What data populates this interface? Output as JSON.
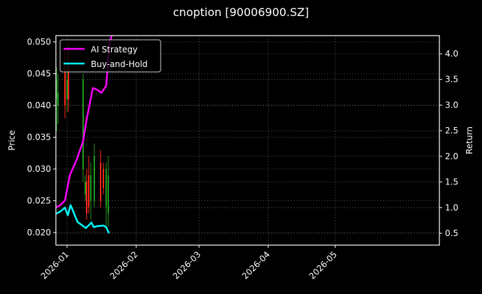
{
  "chart_data": {
    "type": "line",
    "title": "cnoption [90006900.SZ]",
    "xlabel": "",
    "ylabel": "Price",
    "ylabel_right": "Return",
    "ylim": [
      0.018,
      0.0508
    ],
    "ylim_right": [
      0.3,
      4.35
    ],
    "xlim": [
      "2025-12-27",
      "2026-05-24"
    ],
    "grid": true,
    "legend_position": "upper left",
    "x_ticks": [
      "2026-01",
      "2026-02",
      "2026-03",
      "2026-04",
      "2026-05"
    ],
    "y_ticks_left": [
      "0.020",
      "0.025",
      "0.030",
      "0.035",
      "0.040",
      "0.045",
      "0.050"
    ],
    "y_ticks_right": [
      "0.5",
      "1.0",
      "1.5",
      "2.0",
      "2.5",
      "3.0",
      "3.5",
      "4.0"
    ],
    "series": [
      {
        "name": "AI Strategy",
        "axis": "right",
        "color": "#ff00ff",
        "x": [
          "2025-12-27",
          "2025-12-29",
          "2025-12-30",
          "2025-12-31",
          "2026-01-02",
          "2026-01-05",
          "2026-01-06",
          "2026-01-07",
          "2026-01-08",
          "2026-01-09",
          "2026-01-12",
          "2026-01-13",
          "2026-01-14"
        ],
        "values": [
          0.95,
          0.98,
          1.05,
          1.55,
          1.75,
          2.05,
          2.45,
          2.95,
          3.45,
          3.4,
          3.35,
          3.45,
          4.2
        ]
      },
      {
        "name": "Buy-and-Hold",
        "axis": "right",
        "color": "#00ffff",
        "x": [
          "2025-12-27",
          "2025-12-29",
          "2025-12-30",
          "2025-12-31",
          "2026-01-02",
          "2026-01-05",
          "2026-01-06",
          "2026-01-07",
          "2026-01-08",
          "2026-01-09",
          "2026-01-12",
          "2026-01-13",
          "2026-01-14"
        ],
        "values": [
          0.88,
          0.92,
          1.0,
          0.85,
          1.05,
          0.72,
          0.6,
          0.71,
          0.62,
          0.64,
          0.65,
          0.62,
          0.5
        ]
      }
    ],
    "candles": [
      {
        "x": 81,
        "open": 0.041,
        "close": 0.044,
        "high": 0.046,
        "low": 0.036,
        "color": "green"
      },
      {
        "x": 83,
        "open": 0.042,
        "close": 0.04,
        "high": 0.045,
        "low": 0.037,
        "color": "green"
      },
      {
        "x": 93,
        "open": 0.046,
        "close": 0.04,
        "high": 0.049,
        "low": 0.038,
        "color": "red"
      },
      {
        "x": 96,
        "open": 0.044,
        "close": 0.041,
        "high": 0.048,
        "low": 0.039,
        "color": "green"
      },
      {
        "x": 98,
        "open": 0.046,
        "close": 0.041,
        "high": 0.05,
        "low": 0.039,
        "color": "red"
      },
      {
        "x": 119,
        "open": 0.03,
        "close": 0.044,
        "high": 0.045,
        "low": 0.028,
        "color": "green"
      },
      {
        "x": 122,
        "open": 0.026,
        "close": 0.028,
        "high": 0.029,
        "low": 0.025,
        "color": "green"
      },
      {
        "x": 124,
        "open": 0.028,
        "close": 0.023,
        "high": 0.03,
        "low": 0.022,
        "color": "red"
      },
      {
        "x": 127,
        "open": 0.029,
        "close": 0.024,
        "high": 0.032,
        "low": 0.023,
        "color": "red"
      },
      {
        "x": 130,
        "open": 0.025,
        "close": 0.029,
        "high": 0.031,
        "low": 0.022,
        "color": "green"
      },
      {
        "x": 135,
        "open": 0.025,
        "close": 0.032,
        "high": 0.034,
        "low": 0.024,
        "color": "green"
      },
      {
        "x": 144,
        "open": 0.031,
        "close": 0.025,
        "high": 0.033,
        "low": 0.024,
        "color": "red"
      },
      {
        "x": 148,
        "open": 0.03,
        "close": 0.027,
        "high": 0.031,
        "low": 0.026,
        "color": "red"
      },
      {
        "x": 152,
        "open": 0.024,
        "close": 0.03,
        "high": 0.031,
        "low": 0.021,
        "color": "green"
      },
      {
        "x": 155,
        "open": 0.023,
        "close": 0.029,
        "high": 0.032,
        "low": 0.021,
        "color": "green"
      }
    ]
  },
  "legend": {
    "items": [
      {
        "label": "AI Strategy",
        "color": "#ff00ff"
      },
      {
        "label": "Buy-and-Hold",
        "color": "#00ffff"
      }
    ]
  },
  "colors": {
    "background": "#000000",
    "axis": "#ffffff",
    "grid": "#555555",
    "up_candle": "#1f9a1f",
    "down_candle": "#ff2a1a"
  }
}
